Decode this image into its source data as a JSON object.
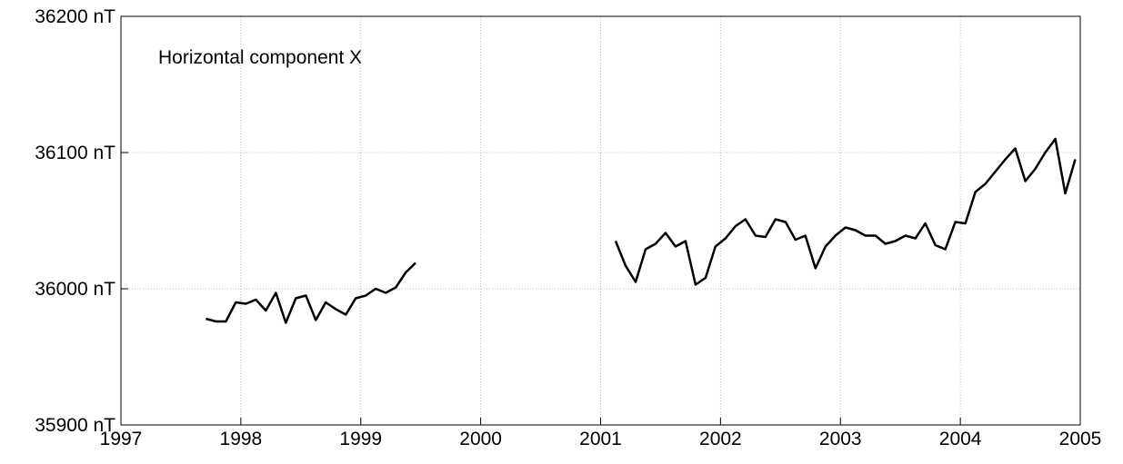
{
  "chart_data": {
    "type": "line",
    "annotation": "Horizontal component X",
    "x": [
      1997.708,
      1997.792,
      1997.875,
      1997.958,
      1998.042,
      1998.125,
      1998.208,
      1998.292,
      1998.375,
      1998.458,
      1998.542,
      1998.625,
      1998.708,
      1998.792,
      1998.875,
      1998.958,
      1999.042,
      1999.125,
      1999.208,
      1999.292,
      1999.375,
      1999.458,
      1999.542,
      1999.625,
      1999.708,
      1999.792,
      1999.875,
      1999.958,
      2000.042,
      2000.125,
      2000.208,
      2000.292,
      2000.375,
      2000.458,
      2000.542,
      2000.625,
      2000.708,
      2000.792,
      2000.875,
      2000.958,
      2001.042,
      2001.125,
      2001.208,
      2001.292,
      2001.375,
      2001.458,
      2001.542,
      2001.625,
      2001.708,
      2001.792,
      2001.875,
      2001.958,
      2002.042,
      2002.125,
      2002.208,
      2002.292,
      2002.375,
      2002.458,
      2002.542,
      2002.625,
      2002.708,
      2002.792,
      2002.875,
      2002.958,
      2003.042,
      2003.125,
      2003.208,
      2003.292,
      2003.375,
      2003.458,
      2003.542,
      2003.625,
      2003.708,
      2003.792,
      2003.875,
      2003.958,
      2004.042,
      2004.125,
      2004.208,
      2004.292,
      2004.375,
      2004.458,
      2004.542,
      2004.625,
      2004.708,
      2004.792,
      2004.875,
      2004.958
    ],
    "series": [
      {
        "color": "#000000",
        "values": [
          35978,
          35976,
          35976,
          35990,
          35989,
          35992,
          35984,
          35997,
          35975,
          35993,
          35995,
          35977,
          35990,
          35985,
          35981,
          35993,
          35995,
          36000,
          35997,
          36001,
          36012,
          36019,
          null,
          null,
          null,
          null,
          null,
          null,
          null,
          null,
          null,
          null,
          null,
          null,
          null,
          null,
          null,
          null,
          null,
          null,
          null,
          36035,
          36017,
          36005,
          36029,
          36033,
          36041,
          36031,
          36035,
          36003,
          36008,
          36031,
          36037,
          36046,
          36051,
          36039,
          36038,
          36051,
          36049,
          36036,
          36039,
          36015,
          36031,
          36039,
          36045,
          36043,
          36039,
          36039,
          36033,
          36035,
          36039,
          36037,
          36048,
          36032,
          36029,
          36049,
          36048,
          36071,
          36077,
          36086,
          36095,
          36103,
          36079,
          36088,
          36100,
          36110,
          36070,
          36095
        ]
      }
    ],
    "xlim": [
      1997,
      2005
    ],
    "xticks": [
      1997,
      1998,
      1999,
      2000,
      2001,
      2002,
      2003,
      2004,
      2005
    ],
    "ylim": [
      35900,
      36200
    ],
    "yticks": [
      {
        "value": 35900,
        "label": "35900 nT"
      },
      {
        "value": 36000,
        "label": "36000 nT"
      },
      {
        "value": 36100,
        "label": "36100 nT"
      },
      {
        "value": 36200,
        "label": "36200 nT"
      }
    ],
    "grid": true
  }
}
